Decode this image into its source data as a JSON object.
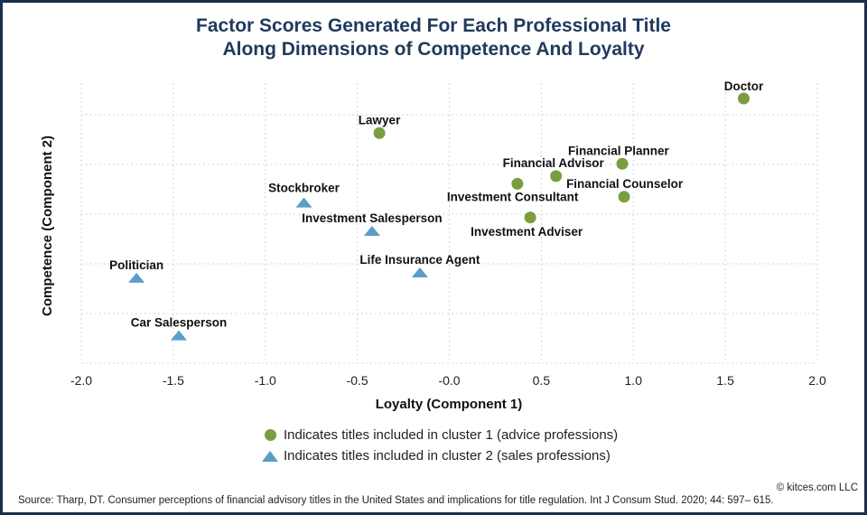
{
  "title_line1": "Factor Scores Generated For Each Professional Title",
  "title_line2": "Along Dimensions of Competence And Loyalty",
  "legend": {
    "cluster1": "Indicates titles included in cluster 1 (advice professions)",
    "cluster2": "Indicates titles included in cluster 2 (sales professions)"
  },
  "copyright": "© kitces.com LLC",
  "source": "Source: Tharp, DT. Consumer perceptions of financial advisory titles in the United States and implications for title regulation. Int J Consum Stud. 2020; 44: 597– 615.",
  "colors": {
    "cluster1": "#7a9e3e",
    "cluster2": "#5b9dc6",
    "title": "#1f3a5c"
  },
  "chart_data": {
    "type": "scatter",
    "xlabel": "Loyalty (Component 1)",
    "ylabel": "Competence (Component 2)",
    "xlim": [
      -2.0,
      2.0
    ],
    "x_ticks": [
      "-2.0",
      "-1.5",
      "-1.0",
      "-0.5",
      "-0.0",
      "0.5",
      "1.0",
      "1.5",
      "2.0"
    ],
    "x_tick_values": [
      -2.0,
      -1.5,
      -1.0,
      -0.5,
      0.0,
      0.5,
      1.0,
      1.5,
      2.0
    ],
    "ylim": [
      -1.6,
      2.0
    ],
    "grid": true,
    "series": [
      {
        "name": "cluster 1 (advice professions)",
        "marker": "circle",
        "points": [
          {
            "label": "Doctor",
            "x": 1.6,
            "y": 1.8
          },
          {
            "label": "Lawyer",
            "x": -0.38,
            "y": 1.35
          },
          {
            "label": "Financial Planner",
            "x": 0.94,
            "y": 0.95
          },
          {
            "label": "Financial Advisor",
            "x": 0.58,
            "y": 0.79
          },
          {
            "label": "Investment Consultant",
            "x": 0.37,
            "y": 0.69
          },
          {
            "label": "Financial Counselor",
            "x": 0.95,
            "y": 0.52
          },
          {
            "label": "Investment Adviser",
            "x": 0.44,
            "y": 0.25
          }
        ]
      },
      {
        "name": "cluster 2 (sales professions)",
        "marker": "triangle",
        "points": [
          {
            "label": "Stockbroker",
            "x": -0.79,
            "y": 0.44
          },
          {
            "label": "Investment Salesperson",
            "x": -0.42,
            "y": 0.07
          },
          {
            "label": "Life Insurance Agent",
            "x": -0.16,
            "y": -0.47
          },
          {
            "label": "Politician",
            "x": -1.7,
            "y": -0.54
          },
          {
            "label": "Car Salesperson",
            "x": -1.47,
            "y": -1.29
          }
        ]
      }
    ]
  }
}
